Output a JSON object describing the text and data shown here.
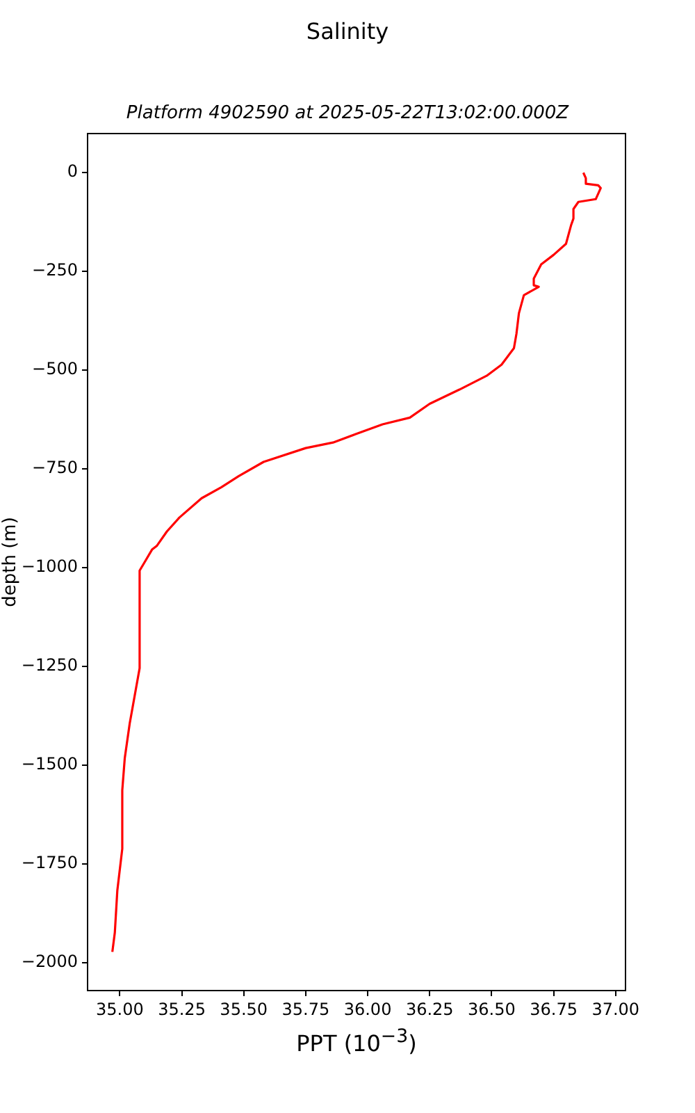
{
  "chart_data": {
    "type": "line",
    "title": "Salinity",
    "subtitle": "Platform 4902590 at 2025-05-22T13:02:00.000Z",
    "xlabel": "PPT (10$^{−3}$)",
    "ylabel": "depth (m)",
    "xlim": [
      34.87,
      37.04
    ],
    "ylim": [
      -2070,
      99
    ],
    "xticks": [
      {
        "value": 35,
        "label": "35.00"
      },
      {
        "value": 35.25,
        "label": "35.25"
      },
      {
        "value": 35.5,
        "label": "35.50"
      },
      {
        "value": 35.75,
        "label": "35.75"
      },
      {
        "value": 36,
        "label": "36.00"
      },
      {
        "value": 36.25,
        "label": "36.25"
      },
      {
        "value": 36.5,
        "label": "36.50"
      },
      {
        "value": 36.75,
        "label": "36.75"
      },
      {
        "value": 37,
        "label": "37.00"
      }
    ],
    "yticks": [
      {
        "value": -2000,
        "label": "−2000"
      },
      {
        "value": -1750,
        "label": "−1750"
      },
      {
        "value": -1500,
        "label": "−1500"
      },
      {
        "value": -1250,
        "label": "−1250"
      },
      {
        "value": -1000,
        "label": "−1000"
      },
      {
        "value": -750,
        "label": "−750"
      },
      {
        "value": -500,
        "label": "−500"
      },
      {
        "value": -250,
        "label": "−250"
      },
      0
    ],
    "grid": false,
    "legend": false,
    "series": [
      {
        "color": "#ff0000",
        "x": [
          36.87,
          36.88,
          36.88,
          36.93,
          36.94,
          36.92,
          36.85,
          36.83,
          36.83,
          36.82,
          36.8,
          36.75,
          36.7,
          36.67,
          36.67,
          36.69,
          36.63,
          36.61,
          36.6,
          36.59,
          36.54,
          36.48,
          36.37,
          36.25,
          36.17,
          36.06,
          35.95,
          35.86,
          35.75,
          35.58,
          35.48,
          35.41,
          35.33,
          35.24,
          35.19,
          35.15,
          35.13,
          35.1,
          35.08,
          35.08,
          35.06,
          35.04,
          35.02,
          35.01,
          35.01,
          34.99,
          34.98,
          34.97
        ],
        "values": [
          0,
          -14,
          -28,
          -32,
          -39,
          -67,
          -74,
          -92,
          -116,
          -134,
          -180,
          -208,
          -232,
          -268,
          -285,
          -289,
          -310,
          -356,
          -408,
          -444,
          -486,
          -514,
          -549,
          -585,
          -620,
          -637,
          -662,
          -683,
          -697,
          -732,
          -768,
          -796,
          -824,
          -873,
          -908,
          -944,
          -954,
          -986,
          -1007,
          -1254,
          -1324,
          -1394,
          -1482,
          -1563,
          -1711,
          -1817,
          -1923,
          -1972
        ]
      }
    ]
  }
}
